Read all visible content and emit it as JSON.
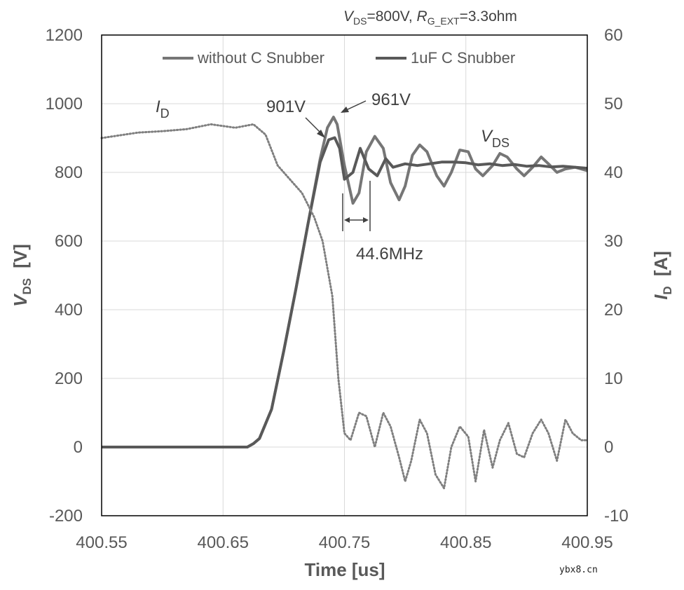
{
  "chart_data": {
    "type": "line",
    "condition": {
      "vds_sym": "V",
      "vds_sub": "DS",
      "vds_val": "=800V, ",
      "rg_sym": "R",
      "rg_sub": "G_EXT",
      "rg_val": "=3.3ohm"
    },
    "x_axis": {
      "label": "Time [us]",
      "min": 400.55,
      "max": 400.95,
      "ticks": [
        400.55,
        400.65,
        400.75,
        400.85,
        400.95
      ],
      "tick_labels": [
        "400.55",
        "400.65",
        "400.75",
        "400.85",
        "400.95"
      ]
    },
    "y_left": {
      "sym": "V",
      "sub": "DS",
      "unit": "[V]",
      "min": -200,
      "max": 1200,
      "ticks": [
        -200,
        0,
        200,
        400,
        600,
        800,
        1000,
        1200
      ],
      "tick_labels": [
        "-200",
        "0",
        "200",
        "400",
        "600",
        "800",
        "1000",
        "1200"
      ]
    },
    "y_right": {
      "sym": "I",
      "sub": "D",
      "unit": "[A]",
      "min": -10,
      "max": 60,
      "ticks": [
        -10,
        0,
        10,
        20,
        30,
        40,
        50,
        60
      ],
      "tick_labels": [
        "-10",
        "0",
        "10",
        "20",
        "30",
        "40",
        "50",
        "60"
      ]
    },
    "legend": [
      "without C Snubber",
      "1uF C Snubber"
    ],
    "series": [
      {
        "name": "without C Snubber",
        "axis": "left",
        "color": "#767676",
        "style": "solid",
        "x": [
          400.55,
          400.67,
          400.675,
          400.68,
          400.69,
          400.7,
          400.71,
          400.72,
          400.73,
          400.736,
          400.741,
          400.744,
          400.75,
          400.757,
          400.762,
          400.768,
          400.775,
          400.782,
          400.788,
          400.795,
          400.8,
          400.806,
          400.812,
          400.818,
          400.826,
          400.832,
          400.838,
          400.845,
          400.852,
          400.858,
          400.864,
          400.872,
          400.878,
          400.884,
          400.892,
          400.898,
          400.905,
          400.912,
          400.918,
          400.925,
          400.932,
          400.94,
          400.95
        ],
        "y": [
          0,
          0,
          10,
          25,
          110,
          280,
          460,
          650,
          840,
          930,
          961,
          940,
          820,
          710,
          740,
          860,
          905,
          870,
          770,
          720,
          760,
          850,
          880,
          860,
          790,
          760,
          800,
          865,
          860,
          810,
          790,
          820,
          855,
          845,
          810,
          790,
          815,
          845,
          825,
          800,
          810,
          815,
          805
        ]
      },
      {
        "name": "1uF C Snubber",
        "axis": "left",
        "color": "#595959",
        "style": "solid",
        "x": [
          400.55,
          400.67,
          400.675,
          400.68,
          400.69,
          400.7,
          400.71,
          400.72,
          400.73,
          400.737,
          400.742,
          400.746,
          400.75,
          400.757,
          400.763,
          400.77,
          400.777,
          400.784,
          400.79,
          400.8,
          400.81,
          400.82,
          400.83,
          400.84,
          400.85,
          400.86,
          400.87,
          400.88,
          400.89,
          400.9,
          400.91,
          400.92,
          400.93,
          400.95
        ],
        "y": [
          0,
          0,
          10,
          25,
          110,
          280,
          460,
          650,
          830,
          895,
          901,
          870,
          780,
          800,
          870,
          810,
          790,
          840,
          815,
          825,
          820,
          825,
          830,
          830,
          828,
          822,
          825,
          820,
          823,
          818,
          820,
          816,
          818,
          812
        ]
      },
      {
        "name": "I_D",
        "axis": "right",
        "color": "#7f7f7f",
        "style": "dotted",
        "x": [
          400.55,
          400.58,
          400.6,
          400.62,
          400.64,
          400.66,
          400.675,
          400.685,
          400.695,
          400.705,
          400.715,
          400.725,
          400.732,
          400.74,
          400.745,
          400.75,
          400.755,
          400.762,
          400.768,
          400.775,
          400.782,
          400.788,
          400.795,
          400.8,
          400.805,
          400.812,
          400.818,
          400.825,
          400.832,
          400.838,
          400.845,
          400.852,
          400.858,
          400.865,
          400.872,
          400.878,
          400.885,
          400.892,
          400.898,
          400.905,
          400.912,
          400.918,
          400.925,
          400.932,
          400.938,
          400.945,
          400.95
        ],
        "y": [
          45,
          45.8,
          46,
          46.3,
          47,
          46.5,
          47,
          45.5,
          41,
          39,
          37,
          33.5,
          30,
          22,
          10,
          2,
          1,
          5,
          4.5,
          0,
          5,
          3,
          -1.5,
          -5,
          -2,
          4,
          2,
          -4,
          -6,
          0,
          3,
          1.5,
          -5,
          2.5,
          -3,
          1,
          3.5,
          -1,
          -1.5,
          2,
          4,
          2,
          -2,
          4,
          2,
          1,
          1
        ]
      }
    ],
    "annotations": [
      "901V",
      "961V",
      "44.6MHz"
    ],
    "curve_labels": {
      "id_sym": "I",
      "id_sub": "D",
      "vds_sym": "V",
      "vds_sub": "DS"
    }
  },
  "watermark": "ybx8.cn"
}
